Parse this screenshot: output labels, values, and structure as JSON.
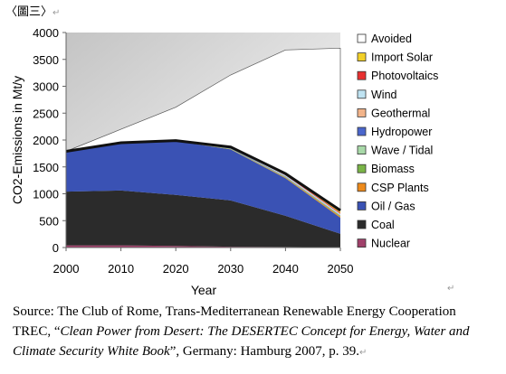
{
  "figure_label": "〈圖三〉",
  "paragraph_mark": "↵",
  "chart_data": {
    "type": "area",
    "stacked": true,
    "xlabel": "Year",
    "ylabel": "CO2-Emissions in Mt/y",
    "x": [
      2000,
      2010,
      2020,
      2030,
      2040,
      2050
    ],
    "ylim": [
      0,
      4000
    ],
    "yticks": [
      0,
      500,
      1000,
      1500,
      2000,
      2500,
      3000,
      3500,
      4000
    ],
    "grid": false,
    "legend_position": "right",
    "series": [
      {
        "name": "Nuclear",
        "color": "#a0406a",
        "values": [
          40,
          40,
          30,
          15,
          10,
          5
        ]
      },
      {
        "name": "Coal",
        "color": "#2b2b2b",
        "values": [
          1000,
          1020,
          950,
          860,
          580,
          250
        ]
      },
      {
        "name": "Oil / Gas",
        "color": "#3a52b4",
        "values": [
          740,
          880,
          1000,
          950,
          700,
          300
        ]
      },
      {
        "name": "CSP Plants",
        "color": "#ee8a1a",
        "values": [
          0,
          0,
          0,
          5,
          10,
          20
        ]
      },
      {
        "name": "Biomass",
        "color": "#7ab547",
        "values": [
          0,
          0,
          0,
          5,
          10,
          15
        ]
      },
      {
        "name": "Wave / Tidal",
        "color": "#a8d9a8",
        "values": [
          0,
          0,
          0,
          5,
          5,
          5
        ]
      },
      {
        "name": "Hydropower",
        "color": "#4a66cc",
        "values": [
          10,
          10,
          10,
          10,
          10,
          5
        ]
      },
      {
        "name": "Geothermal",
        "color": "#f2b48a",
        "values": [
          0,
          0,
          0,
          5,
          5,
          5
        ]
      },
      {
        "name": "Wind",
        "color": "#bfe3f2",
        "values": [
          0,
          0,
          0,
          5,
          15,
          20
        ]
      },
      {
        "name": "Photovoltaics",
        "color": "#e83030",
        "values": [
          0,
          0,
          0,
          5,
          10,
          20
        ]
      },
      {
        "name": "Import Solar",
        "color": "#f2d028",
        "values": [
          0,
          0,
          0,
          5,
          20,
          45
        ]
      },
      {
        "name": "Avoided",
        "color": "#ffffff",
        "values": [
          0,
          250,
          620,
          1340,
          2300,
          3020
        ]
      }
    ],
    "legend_order": [
      "Avoided",
      "Import Solar",
      "Photovoltaics",
      "Wind",
      "Geothermal",
      "Hydropower",
      "Wave / Tidal",
      "Biomass",
      "CSP Plants",
      "Oil / Gas",
      "Coal",
      "Nuclear"
    ]
  },
  "source": {
    "line1": "Source: The Club of Rome, Trans-Mediterranean Renewable Energy Cooperation",
    "line2_prefix": "TREC, “",
    "line2_italic": "Clean Power from Desert: The DESERTEC Concept for Energy, Water and",
    "line3_italic": "Climate Security White Book",
    "line3_suffix": "”, Germany: Hamburg 2007, p. 39."
  }
}
